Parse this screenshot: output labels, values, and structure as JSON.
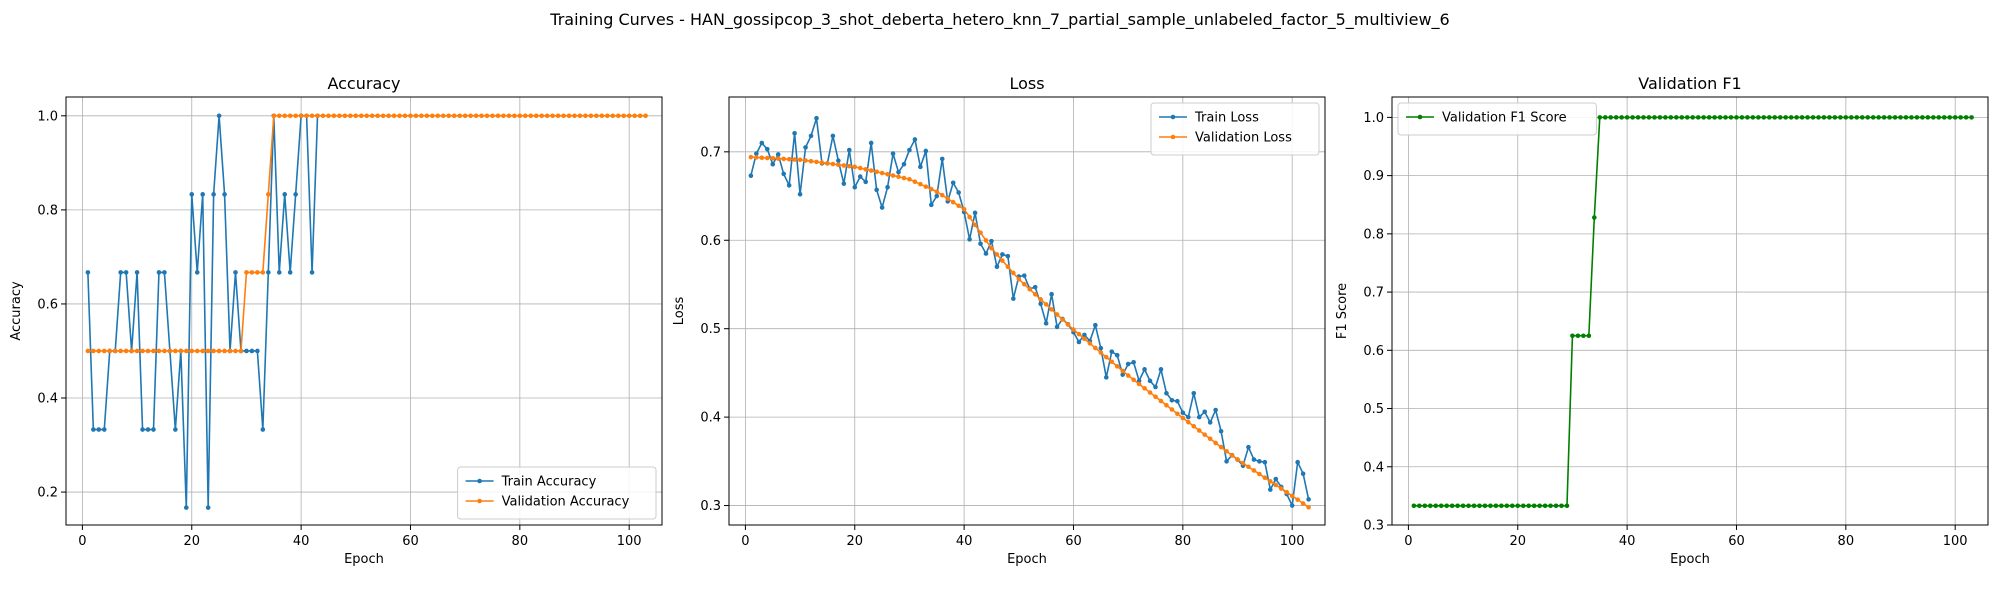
{
  "figure": {
    "suptitle": "Training Curves - HAN_gossipcop_3_shot_deberta_hetero_knn_7_partial_sample_unlabeled_factor_5_multiview_6"
  },
  "colors": {
    "blue": "#1f77b4",
    "orange": "#ff7f0e",
    "green": "#008000",
    "grid": "#b0b0b0"
  },
  "chart_data": [
    {
      "type": "line",
      "title": "Accuracy",
      "xlabel": "Epoch",
      "ylabel": "Accuracy",
      "xlim": [
        -3,
        106
      ],
      "ylim": [
        0.13,
        1.04
      ],
      "xticks": [
        0,
        20,
        40,
        60,
        80,
        100
      ],
      "yticks": [
        0.2,
        0.4,
        0.6,
        0.8,
        1.0
      ],
      "grid": true,
      "legend_position": "lower-right",
      "series": [
        {
          "name": "Train Accuracy",
          "color": "#1f77b4",
          "x": [
            1,
            2,
            3,
            4,
            5,
            6,
            7,
            8,
            9,
            10,
            11,
            12,
            13,
            14,
            15,
            16,
            17,
            18,
            19,
            20,
            21,
            22,
            23,
            24,
            25,
            26,
            27,
            28,
            29,
            30,
            31,
            32,
            33,
            34,
            35,
            36,
            37,
            38,
            39,
            40,
            41,
            42,
            43
          ],
          "y": [
            0.667,
            0.333,
            0.333,
            0.333,
            0.5,
            0.5,
            0.667,
            0.667,
            0.5,
            0.667,
            0.333,
            0.333,
            0.333,
            0.667,
            0.667,
            0.5,
            0.333,
            0.5,
            0.167,
            0.833,
            0.667,
            0.833,
            0.167,
            0.833,
            1.0,
            0.833,
            0.5,
            0.667,
            0.5,
            0.5,
            0.5,
            0.5,
            0.333,
            0.667,
            1.0,
            0.667,
            0.833,
            0.667,
            0.833,
            1.0,
            1.0,
            0.667,
            1.0
          ]
        },
        {
          "name": "Validation Accuracy",
          "color": "#ff7f0e",
          "x_start": 1,
          "x_end": 103,
          "y_segments": [
            {
              "from": 1,
              "to": 29,
              "value": 0.5
            },
            {
              "from": 30,
              "to": 33,
              "value": 0.667
            },
            {
              "from": 34,
              "to": 34,
              "value": 0.833
            },
            {
              "from": 35,
              "to": 103,
              "value": 1.0
            }
          ]
        }
      ]
    },
    {
      "type": "line",
      "title": "Loss",
      "xlabel": "Epoch",
      "ylabel": "Loss",
      "xlim": [
        -3,
        106
      ],
      "ylim": [
        0.278,
        0.762
      ],
      "xticks": [
        0,
        20,
        40,
        60,
        80,
        100
      ],
      "yticks": [
        0.3,
        0.4,
        0.5,
        0.6,
        0.7
      ],
      "grid": true,
      "legend_position": "upper-right",
      "series": [
        {
          "name": "Train Loss",
          "color": "#1f77b4",
          "x_start": 1,
          "x_end": 103,
          "y": [
            0.673,
            0.698,
            0.71,
            0.703,
            0.686,
            0.697,
            0.675,
            0.662,
            0.721,
            0.652,
            0.705,
            0.718,
            0.738,
            0.687,
            0.687,
            0.718,
            0.69,
            0.664,
            0.702,
            0.66,
            0.672,
            0.666,
            0.71,
            0.657,
            0.637,
            0.66,
            0.698,
            0.677,
            0.686,
            0.702,
            0.714,
            0.683,
            0.701,
            0.64,
            0.65,
            0.692,
            0.644,
            0.665,
            0.654,
            0.632,
            0.601,
            0.631,
            0.596,
            0.585,
            0.599,
            0.57,
            0.584,
            0.582,
            0.534,
            0.559,
            0.56,
            0.545,
            0.547,
            0.528,
            0.506,
            0.539,
            0.502,
            0.511,
            0.505,
            0.496,
            0.485,
            0.493,
            0.486,
            0.504,
            0.478,
            0.445,
            0.474,
            0.47,
            0.448,
            0.46,
            0.462,
            0.441,
            0.454,
            0.441,
            0.434,
            0.454,
            0.427,
            0.419,
            0.418,
            0.405,
            0.4,
            0.427,
            0.4,
            0.406,
            0.394,
            0.408,
            0.384,
            0.35,
            0.357,
            0.352,
            0.345,
            0.366,
            0.352,
            0.35,
            0.349,
            0.318,
            0.33,
            0.321,
            0.313,
            0.3,
            0.349,
            0.336,
            0.307
          ]
        },
        {
          "name": "Validation Loss",
          "color": "#ff7f0e",
          "x_start": 1,
          "x_end": 103,
          "y_smooth_knots": [
            [
              1,
              0.694
            ],
            [
              10,
              0.691
            ],
            [
              20,
              0.683
            ],
            [
              30,
              0.669
            ],
            [
              35,
              0.655
            ],
            [
              40,
              0.635
            ],
            [
              45,
              0.591
            ],
            [
              50,
              0.556
            ],
            [
              60,
              0.499
            ],
            [
              70,
              0.447
            ],
            [
              80,
              0.399
            ],
            [
              90,
              0.352
            ],
            [
              100,
              0.311
            ],
            [
              103,
              0.298
            ]
          ]
        }
      ]
    },
    {
      "type": "line",
      "title": "Validation F1",
      "xlabel": "Epoch",
      "ylabel": "F1 Score",
      "xlim": [
        -3,
        106
      ],
      "ylim": [
        0.3,
        1.035
      ],
      "xticks": [
        0,
        20,
        40,
        60,
        80,
        100
      ],
      "yticks": [
        0.3,
        0.4,
        0.5,
        0.6,
        0.7,
        0.8,
        0.9,
        1.0
      ],
      "grid": true,
      "legend_position": "upper-left",
      "series": [
        {
          "name": "Validation F1 Score",
          "color": "#008000",
          "x_start": 1,
          "x_end": 103,
          "y_segments": [
            {
              "from": 1,
              "to": 29,
              "value": 0.333
            },
            {
              "from": 30,
              "to": 33,
              "value": 0.625
            },
            {
              "from": 34,
              "to": 34,
              "value": 0.828
            },
            {
              "from": 35,
              "to": 103,
              "value": 1.0
            }
          ]
        }
      ]
    }
  ]
}
